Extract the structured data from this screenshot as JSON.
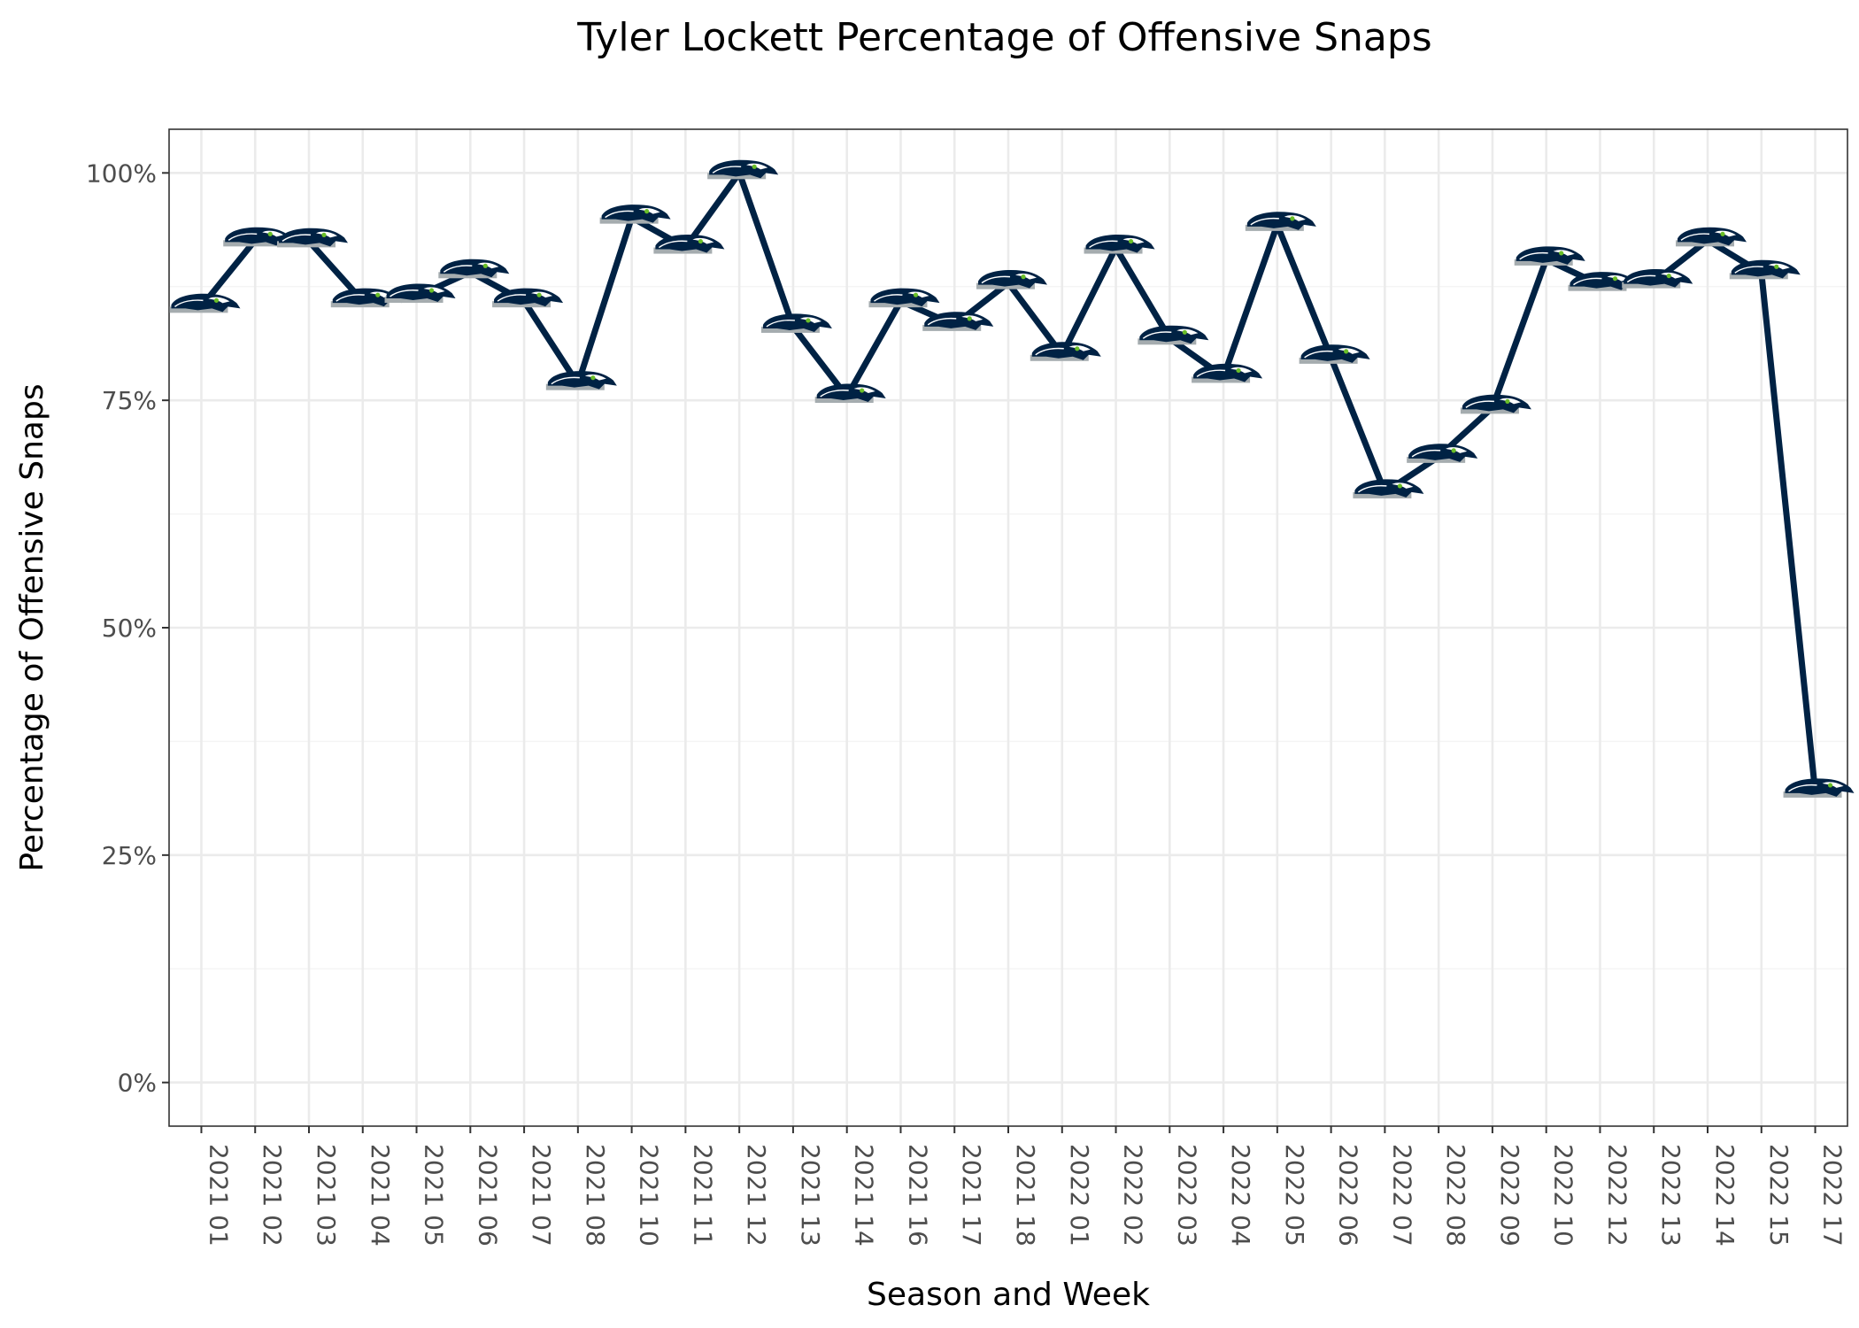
{
  "chart_data": {
    "type": "line",
    "title": "Tyler Lockett Percentage of Offensive Snaps",
    "xlabel": "Season and Week",
    "ylabel": "Percentage of Offensive Snaps",
    "categories": [
      "2021 01",
      "2021 02",
      "2021 03",
      "2021 04",
      "2021 05",
      "2021 06",
      "2021 07",
      "2021 08",
      "2021 10",
      "2021 11",
      "2021 12",
      "2021 13",
      "2021 14",
      "2021 16",
      "2021 17",
      "2021 18",
      "2022 01",
      "2022 02",
      "2022 03",
      "2022 04",
      "2022 05",
      "2022 06",
      "2022 07",
      "2022 08",
      "2022 09",
      "2022 10",
      "2022 12",
      "2022 13",
      "2022 14",
      "2022 15",
      "2022 17"
    ],
    "series": [
      {
        "values": [
          85.3,
          92.6,
          92.5,
          85.9,
          86.4,
          89.1,
          85.9,
          76.8,
          95.1,
          91.8,
          100.0,
          83.1,
          75.4,
          85.9,
          83.3,
          87.9,
          80.0,
          91.8,
          81.8,
          77.6,
          94.3,
          79.7,
          64.9,
          68.8,
          74.2,
          90.5,
          87.7,
          88.0,
          92.6,
          89.0,
          32.0
        ]
      }
    ],
    "y_ticks": [
      0,
      25,
      50,
      75,
      100
    ],
    "y_tick_labels": [
      "0%",
      "25%",
      "50%",
      "75%",
      "100%"
    ],
    "ylim": [
      -4.8,
      104.8
    ],
    "grid": true,
    "line_color": "#002244",
    "marker": "seahawks-logo-icon",
    "marker_colors": {
      "navy": "#002244",
      "gray": "#a5acaf",
      "green": "#69be28"
    }
  }
}
